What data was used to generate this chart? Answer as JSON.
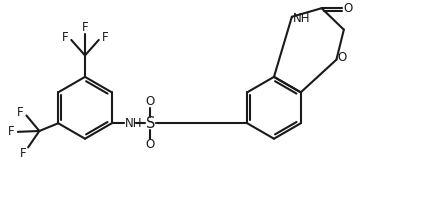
{
  "bg_color": "#ffffff",
  "line_color": "#1a1a1a",
  "line_width": 1.5,
  "font_size": 8.5,
  "figsize": [
    4.32,
    2.18
  ],
  "dpi": 100,
  "xlim": [
    0,
    10
  ],
  "ylim": [
    0,
    5
  ]
}
